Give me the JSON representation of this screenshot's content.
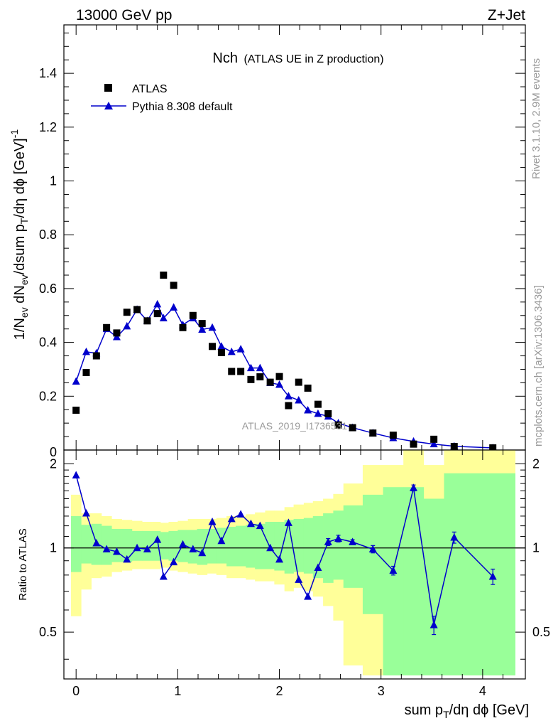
{
  "header": {
    "left": "13000 GeV pp",
    "right": "Z+Jet"
  },
  "side_labels": {
    "rivet": "Rivet 3.1.10,  2.9M events",
    "mcplots": "mcplots.cern.ch [arXiv:1306.3436]"
  },
  "chart_data": [
    {
      "type": "scatter",
      "title_main": "Nch",
      "title_sub": "(ATLAS UE in Z production)",
      "watermark": "ATLAS_2019_I1736531",
      "ylabel": "1/N_ev dN_ev/dsum p_T/dη dϕ [GeV]^-1",
      "xlabel": "sum p_T/dη dϕ [GeV]",
      "xlim": [
        -0.12,
        4.42
      ],
      "ylim": [
        0,
        1.58
      ],
      "yticks": [
        0.2,
        0.4,
        0.6,
        0.8,
        1.0,
        1.2,
        1.4
      ],
      "ytick_labels": [
        "0.2",
        "0.4",
        "0.6",
        "0.8",
        "1",
        "1.2",
        "1.4"
      ],
      "bottom_tick_label": "0",
      "legend_position": "top-left",
      "series": [
        {
          "name": "ATLAS",
          "marker": "square",
          "color": "#000000",
          "x": [
            0.0,
            0.1,
            0.2,
            0.3,
            0.4,
            0.5,
            0.6,
            0.7,
            0.8,
            0.86,
            0.96,
            1.05,
            1.15,
            1.24,
            1.34,
            1.43,
            1.53,
            1.62,
            1.72,
            1.81,
            1.91,
            2.0,
            2.09,
            2.19,
            2.28,
            2.38,
            2.48,
            2.58,
            2.72,
            2.92,
            3.12,
            3.32,
            3.52,
            3.72,
            4.1
          ],
          "values": [
            0.148,
            0.288,
            0.35,
            0.455,
            0.435,
            0.512,
            0.522,
            0.48,
            0.507,
            0.65,
            0.612,
            0.455,
            0.5,
            0.47,
            0.385,
            0.362,
            0.292,
            0.292,
            0.262,
            0.272,
            0.252,
            0.273,
            0.165,
            0.252,
            0.23,
            0.17,
            0.135,
            0.093,
            0.083,
            0.063,
            0.055,
            0.022,
            0.04,
            0.013,
            0.008
          ]
        },
        {
          "name": "Pythia 8.308 default",
          "marker": "triangle",
          "color": "#0000cc",
          "x": [
            0.0,
            0.1,
            0.2,
            0.3,
            0.4,
            0.5,
            0.6,
            0.7,
            0.8,
            0.86,
            0.96,
            1.05,
            1.15,
            1.24,
            1.34,
            1.43,
            1.53,
            1.62,
            1.72,
            1.81,
            1.91,
            2.0,
            2.09,
            2.19,
            2.28,
            2.38,
            2.48,
            2.58,
            2.72,
            2.92,
            3.12,
            3.32,
            3.52,
            3.72,
            4.1
          ],
          "values": [
            0.255,
            0.365,
            0.36,
            0.45,
            0.42,
            0.46,
            0.522,
            0.48,
            0.542,
            0.49,
            0.53,
            0.465,
            0.49,
            0.448,
            0.455,
            0.385,
            0.365,
            0.375,
            0.305,
            0.305,
            0.25,
            0.243,
            0.2,
            0.185,
            0.148,
            0.135,
            0.125,
            0.1,
            0.083,
            0.063,
            0.045,
            0.032,
            0.022,
            0.014,
            0.008
          ]
        }
      ]
    },
    {
      "type": "line",
      "ylabel": "Ratio to ATLAS",
      "xlim": [
        -0.12,
        4.42
      ],
      "ylim": [
        0.34,
        2.24
      ],
      "reference_line": 1,
      "yticks": [
        0.5,
        1,
        2
      ],
      "ytick_labels": [
        "0.5",
        "1",
        "2"
      ],
      "xticks": [
        0,
        1,
        2,
        3,
        4
      ],
      "xtick_labels": [
        "0",
        "1",
        "2",
        "3",
        "4"
      ],
      "bands": {
        "edges": [
          -0.05,
          0.05,
          0.15,
          0.25,
          0.35,
          0.45,
          0.55,
          0.65,
          0.75,
          0.83,
          0.91,
          1.0,
          1.1,
          1.19,
          1.29,
          1.38,
          1.48,
          1.57,
          1.67,
          1.76,
          1.86,
          1.95,
          2.05,
          2.14,
          2.24,
          2.33,
          2.43,
          2.53,
          2.63,
          2.82,
          3.02,
          3.22,
          3.42,
          3.62,
          4.32
        ],
        "green_lo": [
          0.82,
          0.88,
          0.87,
          0.87,
          0.89,
          0.89,
          0.9,
          0.9,
          0.9,
          0.91,
          0.9,
          0.89,
          0.88,
          0.87,
          0.88,
          0.88,
          0.86,
          0.86,
          0.85,
          0.84,
          0.84,
          0.83,
          0.81,
          0.82,
          0.81,
          0.78,
          0.75,
          0.77,
          0.72,
          0.58,
          0.35,
          0.35,
          0.35,
          0.35
        ],
        "green_hi": [
          1.3,
          1.21,
          1.22,
          1.2,
          1.17,
          1.17,
          1.15,
          1.15,
          1.15,
          1.14,
          1.15,
          1.16,
          1.16,
          1.17,
          1.17,
          1.18,
          1.19,
          1.2,
          1.21,
          1.22,
          1.24,
          1.24,
          1.26,
          1.27,
          1.28,
          1.3,
          1.33,
          1.36,
          1.42,
          1.55,
          1.65,
          1.65,
          1.5,
          1.85
        ],
        "yellow_lo": [
          0.57,
          0.71,
          0.78,
          0.79,
          0.82,
          0.83,
          0.84,
          0.84,
          0.84,
          0.85,
          0.83,
          0.82,
          0.81,
          0.8,
          0.81,
          0.8,
          0.78,
          0.78,
          0.77,
          0.76,
          0.76,
          0.74,
          0.7,
          0.72,
          0.7,
          0.67,
          0.62,
          0.55,
          0.38,
          0.35,
          0.35,
          0.35,
          0.35,
          0.35
        ],
        "yellow_hi": [
          1.55,
          1.33,
          1.33,
          1.3,
          1.27,
          1.26,
          1.25,
          1.24,
          1.24,
          1.23,
          1.24,
          1.25,
          1.27,
          1.27,
          1.27,
          1.28,
          1.3,
          1.3,
          1.32,
          1.34,
          1.36,
          1.36,
          1.4,
          1.43,
          1.45,
          1.47,
          1.5,
          1.56,
          1.7,
          1.98,
          1.98,
          2.24,
          1.98,
          2.24
        ]
      },
      "series": [
        {
          "name": "Pythia 8.308 default / ATLAS",
          "marker": "triangle",
          "color": "#0000cc",
          "x": [
            0.0,
            0.1,
            0.2,
            0.3,
            0.4,
            0.5,
            0.6,
            0.7,
            0.8,
            0.86,
            0.96,
            1.05,
            1.15,
            1.24,
            1.34,
            1.43,
            1.53,
            1.62,
            1.72,
            1.81,
            1.91,
            2.0,
            2.09,
            2.19,
            2.28,
            2.38,
            2.48,
            2.58,
            2.72,
            2.92,
            3.12,
            3.32,
            3.52,
            3.72,
            4.1
          ],
          "values": [
            1.82,
            1.33,
            1.04,
            0.99,
            0.97,
            0.91,
            1.0,
            0.99,
            1.07,
            0.79,
            0.89,
            1.03,
            0.99,
            0.96,
            1.24,
            1.06,
            1.27,
            1.32,
            1.22,
            1.2,
            1.0,
            0.91,
            1.23,
            0.77,
            0.67,
            0.85,
            1.05,
            1.08,
            1.05,
            0.99,
            0.83,
            1.64,
            0.53,
            1.09,
            0.79
          ],
          "errors": [
            0,
            0,
            0,
            0,
            0,
            0,
            0,
            0,
            0,
            0,
            0,
            0,
            0,
            0,
            0,
            0,
            0,
            0,
            0,
            0,
            0,
            0,
            0,
            0,
            0,
            0,
            0.03,
            0.03,
            0.02,
            0.03,
            0.03,
            0.04,
            0.04,
            0.05,
            0.05
          ]
        }
      ]
    }
  ]
}
